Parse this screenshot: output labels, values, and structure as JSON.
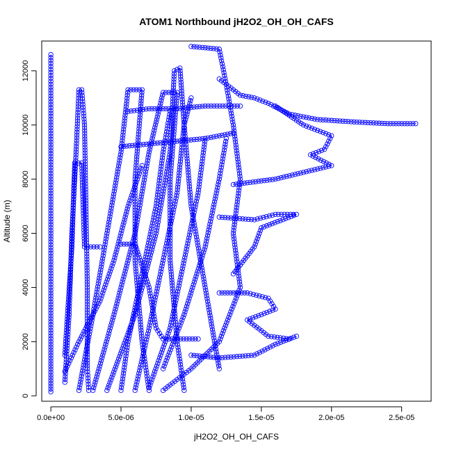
{
  "chart_data": {
    "type": "scatter",
    "title": "ATOM1 Northbound jH2O2_OH_OH_CAFS",
    "xlabel": "jH2O2_OH_OH_CAFS",
    "ylabel": "Altitude (m)",
    "xlim": [
      -6.5e-07,
      2.71e-05
    ],
    "ylim": [
      -200,
      13100
    ],
    "x_ticks": [
      {
        "value": 0,
        "label": "0.0e+00"
      },
      {
        "value": 5e-06,
        "label": "5.0e-06"
      },
      {
        "value": 1e-05,
        "label": "1.0e-05"
      },
      {
        "value": 1.5e-05,
        "label": "1.5e-05"
      },
      {
        "value": 2e-05,
        "label": "2.0e-05"
      },
      {
        "value": 2.5e-05,
        "label": "2.5e-05"
      }
    ],
    "y_ticks": [
      {
        "value": 0,
        "label": "0"
      },
      {
        "value": 2000,
        "label": "2000"
      },
      {
        "value": 4000,
        "label": "4000"
      },
      {
        "value": 6000,
        "label": "6000"
      },
      {
        "value": 8000,
        "label": "8000"
      },
      {
        "value": 10000,
        "label": "10000"
      },
      {
        "value": 12000,
        "label": "12000"
      }
    ],
    "marker": "open-circle",
    "color": "#0000ff",
    "grid": false,
    "series": [
      {
        "points": [
          [
            0,
            150
          ],
          [
            0,
            2000
          ],
          [
            0,
            4000
          ],
          [
            0,
            6000
          ],
          [
            0,
            8000
          ],
          [
            0,
            10000
          ],
          [
            0,
            11500
          ],
          [
            0,
            12600
          ]
        ]
      },
      {
        "points": [
          [
            1e-06,
            500
          ],
          [
            1.3e-06,
            3000
          ],
          [
            1.5e-06,
            6000
          ],
          [
            1.8e-06,
            9000
          ],
          [
            2e-06,
            11300
          ],
          [
            2.2e-06,
            11300
          ],
          [
            2.4e-06,
            10000
          ],
          [
            2.5e-06,
            7000
          ],
          [
            2.6e-06,
            4000
          ],
          [
            2.6e-06,
            1000
          ],
          [
            2.7e-06,
            200
          ]
        ]
      },
      {
        "points": [
          [
            1e-06,
            1500
          ],
          [
            1.5e-06,
            5500
          ],
          [
            1.7e-06,
            8600
          ],
          [
            2.2e-06,
            8600
          ],
          [
            2.4e-06,
            5500
          ],
          [
            3.5e-06,
            5500
          ]
        ]
      },
      {
        "points": [
          [
            2e-06,
            200
          ],
          [
            3e-06,
            3000
          ],
          [
            4e-06,
            6000
          ],
          [
            5e-06,
            9000
          ],
          [
            5.5e-06,
            11300
          ],
          [
            6.5e-06,
            11300
          ],
          [
            6e-06,
            8000
          ],
          [
            6e-06,
            5000
          ],
          [
            6.5e-06,
            2000
          ],
          [
            7e-06,
            200
          ]
        ]
      },
      {
        "points": [
          [
            3e-06,
            200
          ],
          [
            4.5e-06,
            3000
          ],
          [
            6e-06,
            6000
          ],
          [
            7e-06,
            9000
          ],
          [
            8e-06,
            11200
          ],
          [
            9e-06,
            11200
          ],
          [
            8.5e-06,
            8000
          ],
          [
            8.5e-06,
            5000
          ],
          [
            9e-06,
            2000
          ],
          [
            9.5e-06,
            200
          ]
        ]
      },
      {
        "points": [
          [
            4e-06,
            200
          ],
          [
            6e-06,
            3000
          ],
          [
            7.5e-06,
            6000
          ],
          [
            8.5e-06,
            9000
          ],
          [
            8.8e-06,
            12000
          ],
          [
            9.2e-06,
            12100
          ],
          [
            9.5e-06,
            10000
          ],
          [
            1e-05,
            7000
          ],
          [
            1.1e-05,
            4000
          ],
          [
            1.2e-05,
            1000
          ]
        ]
      },
      {
        "points": [
          [
            1e-05,
            12900
          ],
          [
            1.2e-05,
            12800
          ],
          [
            1.25e-05,
            11500
          ],
          [
            1.3e-05,
            10000
          ],
          [
            1.35e-05,
            8000
          ],
          [
            1.3e-05,
            6000
          ],
          [
            1.35e-05,
            4000
          ],
          [
            1.2e-05,
            2000
          ],
          [
            1e-05,
            1000
          ],
          [
            8e-06,
            200
          ]
        ]
      },
      {
        "points": [
          [
            1.2e-05,
            11700
          ],
          [
            1.35e-05,
            11100
          ],
          [
            1.45e-05,
            11000
          ],
          [
            1.55e-05,
            10800
          ],
          [
            1.7e-05,
            10400
          ],
          [
            1.9e-05,
            10200
          ],
          [
            2.2e-05,
            10100
          ],
          [
            2.4e-05,
            10050
          ],
          [
            2.6e-05,
            10050
          ]
        ]
      },
      {
        "points": [
          [
            1.6e-05,
            10700
          ],
          [
            1.8e-05,
            10000
          ],
          [
            2e-05,
            9600
          ],
          [
            1.95e-05,
            9100
          ],
          [
            1.85e-05,
            8900
          ],
          [
            2e-05,
            8500
          ],
          [
            1.6e-05,
            8000
          ],
          [
            1.3e-05,
            7800
          ]
        ]
      },
      {
        "points": [
          [
            1.2e-05,
            6600
          ],
          [
            1.45e-05,
            6500
          ],
          [
            1.6e-05,
            6700
          ],
          [
            1.75e-05,
            6700
          ],
          [
            1.5e-05,
            6200
          ],
          [
            1.45e-05,
            5500
          ],
          [
            1.3e-05,
            4500
          ]
        ]
      },
      {
        "points": [
          [
            1.2e-05,
            3800
          ],
          [
            1.4e-05,
            3800
          ],
          [
            1.55e-05,
            3600
          ],
          [
            1.6e-05,
            3200
          ],
          [
            1.4e-05,
            2800
          ],
          [
            1.55e-05,
            2200
          ],
          [
            1.7e-05,
            2100
          ]
        ]
      },
      {
        "points": [
          [
            1e-05,
            1500
          ],
          [
            1.2e-05,
            1400
          ],
          [
            1.45e-05,
            1500
          ],
          [
            1.6e-05,
            1900
          ],
          [
            1.75e-05,
            2200
          ]
        ]
      },
      {
        "points": [
          [
            5e-06,
            9200
          ],
          [
            7e-06,
            9300
          ],
          [
            9e-06,
            9400
          ],
          [
            1.1e-05,
            9500
          ],
          [
            1.3e-05,
            9700
          ]
        ]
      },
      {
        "points": [
          [
            5.5e-06,
            10500
          ],
          [
            7e-06,
            10600
          ],
          [
            9e-06,
            10600
          ],
          [
            1.1e-05,
            10700
          ],
          [
            1.35e-05,
            10700
          ]
        ]
      },
      {
        "points": [
          [
            5e-06,
            5600
          ],
          [
            6e-06,
            5600
          ],
          [
            7e-06,
            4000
          ],
          [
            7.5e-06,
            2500
          ],
          [
            8e-06,
            2100
          ],
          [
            1.05e-05,
            2100
          ]
        ]
      },
      {
        "points": [
          [
            5e-06,
            200
          ],
          [
            5.5e-06,
            2000
          ],
          [
            6.5e-06,
            4500
          ],
          [
            7.5e-06,
            7000
          ],
          [
            8e-06,
            9000
          ],
          [
            8.5e-06,
            10500
          ]
        ]
      },
      {
        "points": [
          [
            6e-06,
            200
          ],
          [
            7e-06,
            2500
          ],
          [
            8e-06,
            5000
          ],
          [
            9e-06,
            7500
          ],
          [
            9.5e-06,
            10000
          ],
          [
            1e-05,
            11000
          ]
        ]
      },
      {
        "points": [
          [
            7e-06,
            300
          ],
          [
            8.5e-06,
            2500
          ],
          [
            9.5e-06,
            5000
          ],
          [
            1.05e-05,
            7500
          ],
          [
            1.1e-05,
            9500
          ]
        ]
      },
      {
        "points": [
          [
            8e-06,
            1000
          ],
          [
            9.5e-06,
            3000
          ],
          [
            1.1e-05,
            5500
          ],
          [
            1.2e-05,
            8000
          ],
          [
            1.25e-05,
            9500
          ]
        ]
      },
      {
        "points": [
          [
            1e-06,
            900
          ],
          [
            2e-06,
            2000
          ],
          [
            3.5e-06,
            3500
          ],
          [
            4.5e-06,
            5000
          ],
          [
            5.5e-06,
            7000
          ],
          [
            6.5e-06,
            8500
          ]
        ]
      }
    ]
  }
}
